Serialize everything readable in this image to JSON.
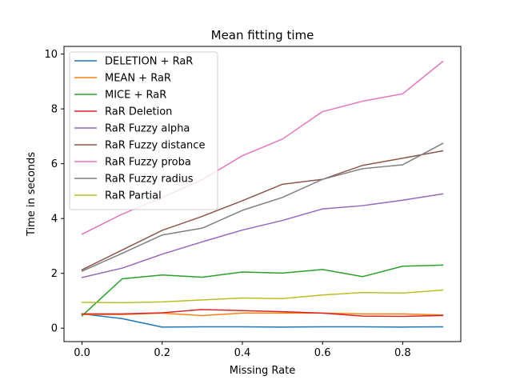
{
  "chart_data": {
    "type": "line",
    "title": "Mean fitting time",
    "xlabel": "Missing Rate",
    "ylabel": "Time in seconds",
    "xlim": [
      -0.045,
      0.945
    ],
    "ylim": [
      -0.49,
      10.28
    ],
    "x_ticks": [
      0.0,
      0.2,
      0.4,
      0.6,
      0.8
    ],
    "x_tick_labels": [
      "0.0",
      "0.2",
      "0.4",
      "0.6",
      "0.8"
    ],
    "y_ticks": [
      0,
      2,
      4,
      6,
      8,
      10
    ],
    "y_tick_labels": [
      "0",
      "2",
      "4",
      "6",
      "8",
      "10"
    ],
    "grid": false,
    "legend_position": "top-left",
    "x": [
      0.0,
      0.1,
      0.2,
      0.3,
      0.4,
      0.5,
      0.6,
      0.7,
      0.8,
      0.9
    ],
    "series": [
      {
        "name": "DELETION + RaR",
        "color": "#1f77b4",
        "values": [
          0.52,
          0.35,
          0.04,
          0.05,
          0.05,
          0.04,
          0.05,
          0.05,
          0.04,
          0.05
        ]
      },
      {
        "name": "MEAN + RaR",
        "color": "#ff7f0e",
        "values": [
          0.5,
          0.5,
          0.55,
          0.46,
          0.55,
          0.55,
          0.55,
          0.52,
          0.52,
          0.48
        ]
      },
      {
        "name": "MICE + RaR",
        "color": "#2ca02c",
        "values": [
          0.45,
          1.8,
          1.94,
          1.86,
          2.05,
          2.01,
          2.14,
          1.88,
          2.26,
          2.3
        ]
      },
      {
        "name": "RaR Deletion",
        "color": "#d62728",
        "values": [
          0.52,
          0.52,
          0.56,
          0.68,
          0.64,
          0.6,
          0.55,
          0.44,
          0.43,
          0.46
        ]
      },
      {
        "name": "RaR Fuzzy alpha",
        "color": "#9467bd",
        "values": [
          1.85,
          2.19,
          2.7,
          3.15,
          3.58,
          3.93,
          4.35,
          4.47,
          4.67,
          4.9
        ]
      },
      {
        "name": "RaR Fuzzy distance",
        "color": "#8c564b",
        "values": [
          2.13,
          2.85,
          3.57,
          4.08,
          4.65,
          5.25,
          5.43,
          5.94,
          6.2,
          6.47
        ]
      },
      {
        "name": "RaR Fuzzy proba",
        "color": "#e377c2",
        "values": [
          3.43,
          4.16,
          4.77,
          5.42,
          6.29,
          6.9,
          7.9,
          8.28,
          8.55,
          9.73
        ]
      },
      {
        "name": "RaR Fuzzy radius",
        "color": "#7f7f7f",
        "values": [
          2.08,
          2.73,
          3.4,
          3.65,
          4.3,
          4.77,
          5.43,
          5.82,
          5.96,
          6.74
        ]
      },
      {
        "name": "RaR Partial",
        "color": "#bcbd22",
        "values": [
          0.94,
          0.93,
          0.96,
          1.03,
          1.1,
          1.08,
          1.21,
          1.3,
          1.28,
          1.39
        ]
      }
    ]
  }
}
